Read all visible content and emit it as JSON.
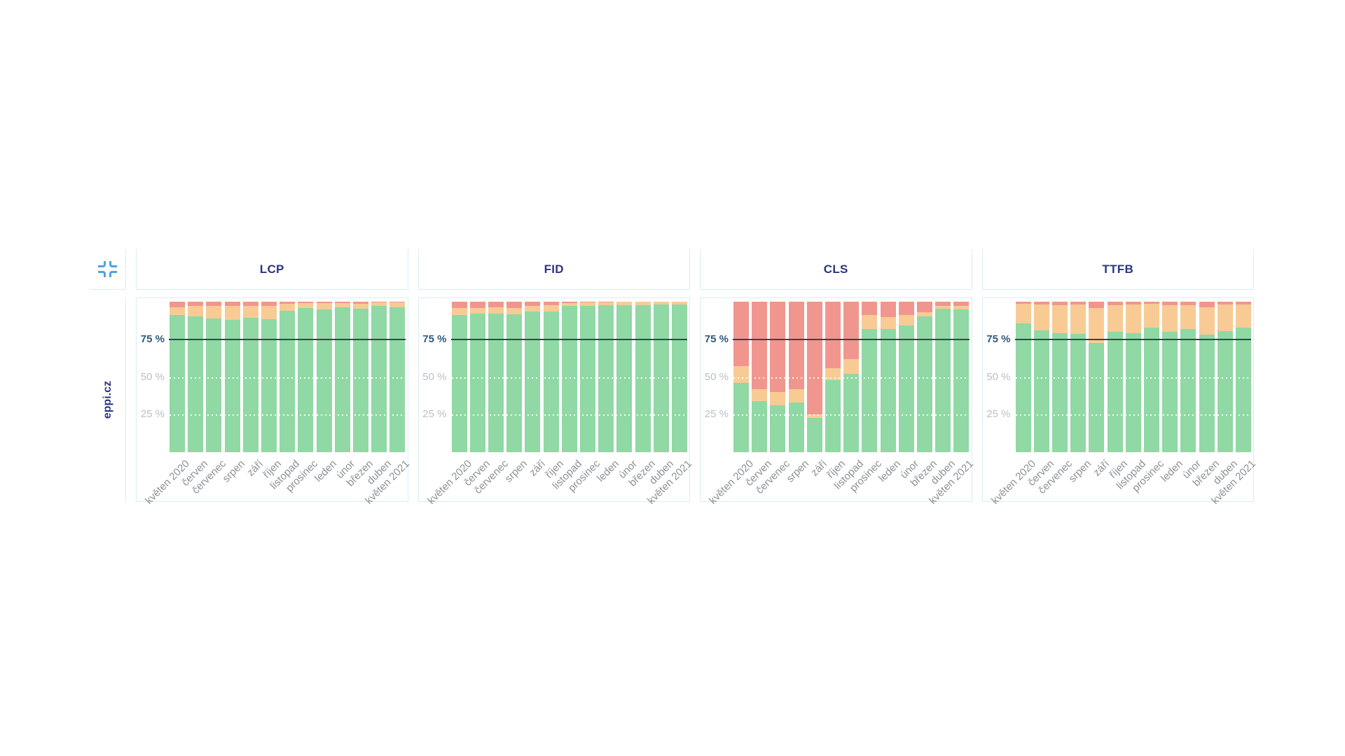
{
  "board": {
    "row_label": "eppi.cz",
    "corner_icon": "collapse-icon"
  },
  "axis": {
    "ticks": [
      {
        "value": 75,
        "label": "75 %",
        "ref": true
      },
      {
        "value": 50,
        "label": "50 %",
        "ref": false
      },
      {
        "value": 25,
        "label": "25 %",
        "ref": false
      }
    ],
    "refline_value": 75,
    "ylim": [
      0,
      100
    ]
  },
  "colors": {
    "good": "#90d8a4",
    "needs_improvement": "#f8cb95",
    "poor": "#f0968e",
    "refline": "#314559",
    "border": "#d9ecf8",
    "title": "#2d3580",
    "tick_ref": "#2e5a7d",
    "tick_gray": "#b9c0c6",
    "month": "#8c9196",
    "icon": "#4da3e2"
  },
  "chart_data": [
    {
      "type": "bar",
      "stacked": true,
      "title": "LCP",
      "ylim": [
        0,
        100
      ],
      "unit": "%",
      "categories": [
        "květen 2020",
        "červen",
        "červenec",
        "srpen",
        "září",
        "říjen",
        "listopad",
        "prosinec",
        "leden",
        "únor",
        "březen",
        "duben",
        "květen 2021"
      ],
      "series": [
        {
          "name": "good",
          "values": [
            91,
            90,
            89,
            88,
            89.5,
            88.5,
            94,
            96,
            95,
            96.5,
            95.5,
            97,
            96.5
          ]
        },
        {
          "name": "needs-improvement",
          "values": [
            5.5,
            7,
            8,
            9,
            7.5,
            8.5,
            4.5,
            3,
            4,
            2.5,
            3,
            2.5,
            3
          ]
        },
        {
          "name": "poor",
          "values": [
            3.5,
            3,
            3,
            3,
            3,
            3,
            1.5,
            1,
            1,
            1,
            1.5,
            0.5,
            0.5
          ]
        }
      ]
    },
    {
      "type": "bar",
      "stacked": true,
      "title": "FID",
      "ylim": [
        0,
        100
      ],
      "unit": "%",
      "categories": [
        "květen 2020",
        "červen",
        "červenec",
        "srpen",
        "září",
        "říjen",
        "listopad",
        "prosinec",
        "leden",
        "únor",
        "březen",
        "duben",
        "květen 2021"
      ],
      "series": [
        {
          "name": "good",
          "values": [
            91,
            92,
            92,
            91.5,
            93.5,
            93.5,
            97,
            97.3,
            97.5,
            97.5,
            97.5,
            98,
            98
          ]
        },
        {
          "name": "needs-improvement",
          "values": [
            5,
            4,
            4.5,
            4.5,
            3.5,
            4,
            2.2,
            2.4,
            2.2,
            2.3,
            2.3,
            1.8,
            1.8
          ]
        },
        {
          "name": "poor",
          "values": [
            4,
            4,
            3.5,
            4,
            3,
            2.5,
            0.8,
            0.3,
            0.3,
            0.2,
            0.2,
            0.2,
            0.2
          ]
        }
      ]
    },
    {
      "type": "bar",
      "stacked": true,
      "title": "CLS",
      "ylim": [
        0,
        100
      ],
      "unit": "%",
      "categories": [
        "květen 2020",
        "červen",
        "červenec",
        "srpen",
        "září",
        "říjen",
        "listopad",
        "prosinec",
        "leden",
        "únor",
        "březen",
        "duben",
        "květen 2021"
      ],
      "series": [
        {
          "name": "good",
          "values": [
            46,
            34,
            31,
            33,
            23,
            48,
            52,
            82,
            82,
            84,
            90,
            95.5,
            95
          ]
        },
        {
          "name": "needs-improvement",
          "values": [
            11,
            8,
            9,
            9,
            2,
            8,
            10,
            9,
            8,
            7,
            3,
            1.5,
            2
          ]
        },
        {
          "name": "poor",
          "values": [
            43,
            58,
            60,
            58,
            75,
            44,
            38,
            9,
            10,
            9,
            7,
            3,
            3
          ]
        }
      ]
    },
    {
      "type": "bar",
      "stacked": true,
      "title": "TTFB",
      "ylim": [
        0,
        100
      ],
      "unit": "%",
      "categories": [
        "květen 2020",
        "červen",
        "červenec",
        "srpen",
        "září",
        "říjen",
        "listopad",
        "prosinec",
        "leden",
        "únor",
        "březen",
        "duben",
        "květen 2021"
      ],
      "series": [
        {
          "name": "good",
          "values": [
            85.5,
            81,
            79,
            78.5,
            72.5,
            80,
            79,
            83,
            80,
            82,
            78,
            80.5,
            83
          ]
        },
        {
          "name": "needs-improvement",
          "values": [
            13,
            17,
            18.5,
            19.5,
            23.5,
            17.5,
            19,
            15.5,
            17.5,
            15.5,
            18.5,
            17.5,
            15
          ]
        },
        {
          "name": "poor",
          "values": [
            1.5,
            2,
            2.5,
            2,
            4,
            2.5,
            2,
            1.5,
            2.5,
            2.5,
            3.5,
            2,
            2
          ]
        }
      ]
    }
  ]
}
